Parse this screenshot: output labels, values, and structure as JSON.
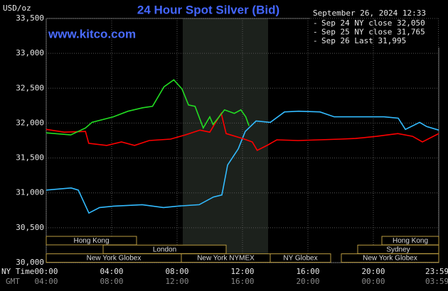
{
  "chart_data": {
    "type": "line",
    "title": "24 Hour Spot Silver (Bid)",
    "website": "www.kitco.com",
    "y_label": "USD/oz",
    "timestamp": "September 26, 2024 12:33",
    "x_label": "NY Time",
    "x2_label": "GMT",
    "xlim": [
      0,
      24
    ],
    "ylim": [
      30000,
      33500
    ],
    "grid": true,
    "xticks": [
      {
        "value": 0,
        "label": "00:00"
      },
      {
        "value": 4,
        "label": "04:00"
      },
      {
        "value": 8,
        "label": "08:00"
      },
      {
        "value": 12,
        "label": "12:00"
      },
      {
        "value": 16,
        "label": "16:00"
      },
      {
        "value": 20,
        "label": "20:00"
      },
      {
        "value": 23.98,
        "label": "23:59"
      }
    ],
    "x2ticks": [
      {
        "value": 0,
        "label": "04:00"
      },
      {
        "value": 4,
        "label": "08:00"
      },
      {
        "value": 8,
        "label": "12:00"
      },
      {
        "value": 12,
        "label": "16:00"
      },
      {
        "value": 16,
        "label": "20:00"
      },
      {
        "value": 20,
        "label": "00:00"
      },
      {
        "value": 23.98,
        "label": "03:59"
      }
    ],
    "yticks": [
      {
        "value": 30000,
        "label": "30,000"
      },
      {
        "value": 30500,
        "label": "30,500"
      },
      {
        "value": 31000,
        "label": "31,000"
      },
      {
        "value": 31500,
        "label": "31,500"
      },
      {
        "value": 32000,
        "label": "32,000"
      },
      {
        "value": 32500,
        "label": "32,500"
      },
      {
        "value": 33000,
        "label": "33,000"
      },
      {
        "value": 33500,
        "label": "33,500"
      }
    ],
    "sessions": [
      "Hong Kong",
      "London",
      "New York Globex",
      "New York NYMEX",
      "NY Globex",
      "Hong Kong",
      "Sydney",
      "New York Globex"
    ],
    "series": [
      {
        "name": "Sep 24 NY close 32,050",
        "color": "#33bbff",
        "x": [
          0,
          1.52,
          1.96,
          2.61,
          3.26,
          4.13,
          5.87,
          7.17,
          8.04,
          9.35,
          10.22,
          10.74,
          11.09,
          11.74,
          12.17,
          12.83,
          13.7,
          14.57,
          15.43,
          16.74,
          17.61,
          18.91,
          20.65,
          21.52,
          21.96,
          22.83,
          23.26,
          24
        ],
        "values": [
          31040,
          31070,
          31040,
          30710,
          30790,
          30810,
          30830,
          30790,
          30810,
          30830,
          30940,
          30970,
          31400,
          31630,
          31880,
          32030,
          32010,
          32160,
          32170,
          32160,
          32090,
          32090,
          32090,
          32070,
          31910,
          32010,
          31950,
          31900
        ]
      },
      {
        "name": "Sep 25 NY close 31,765",
        "color": "#ff0000",
        "x": [
          0,
          1.1,
          2.4,
          2.6,
          3.7,
          4.6,
          5.4,
          6.3,
          7.6,
          8.5,
          9.4,
          10.0,
          10.7,
          11.0,
          12.0,
          12.6,
          12.9,
          13.5,
          14.1,
          15.4,
          16.7,
          18.0,
          18.9,
          20.2,
          21.5,
          22.4,
          23.0,
          24
        ],
        "values": [
          31910,
          31870,
          31880,
          31710,
          31680,
          31730,
          31680,
          31750,
          31770,
          31830,
          31900,
          31870,
          32140,
          31850,
          31780,
          31730,
          31610,
          31680,
          31760,
          31750,
          31760,
          31770,
          31780,
          31810,
          31850,
          31810,
          31730,
          31850
        ]
      },
      {
        "name": "Sep 26 Last 31,995",
        "color": "#22dd22",
        "x": [
          0,
          1.5,
          2.4,
          2.8,
          4.1,
          5.0,
          5.9,
          6.5,
          7.2,
          7.8,
          8.3,
          8.7,
          9.1,
          9.6,
          10.0,
          10.2,
          10.9,
          11.5,
          11.9,
          12.2,
          12.4
        ],
        "values": [
          31860,
          31830,
          31930,
          32010,
          32090,
          32170,
          32220,
          32240,
          32520,
          32620,
          32490,
          32260,
          32240,
          31930,
          32090,
          31980,
          32190,
          32140,
          32190,
          32090,
          31960
        ]
      }
    ]
  }
}
